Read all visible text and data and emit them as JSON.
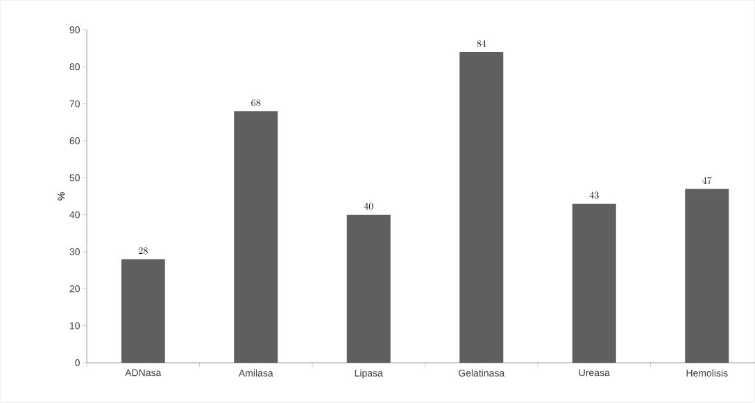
{
  "chart_data": {
    "type": "bar",
    "ylabel": "%",
    "categories": [
      "ADNasa",
      "Amilasa",
      "Lipasa",
      "Gelatinasa",
      "Ureasa",
      "Hemolisis"
    ],
    "values": [
      28,
      68,
      40,
      84,
      43,
      47
    ],
    "color": "#5f5f5f",
    "ylim": [
      0,
      90
    ],
    "yticks": [
      0,
      10,
      20,
      30,
      40,
      50,
      60,
      70,
      80,
      90
    ],
    "data_labels": true
  }
}
